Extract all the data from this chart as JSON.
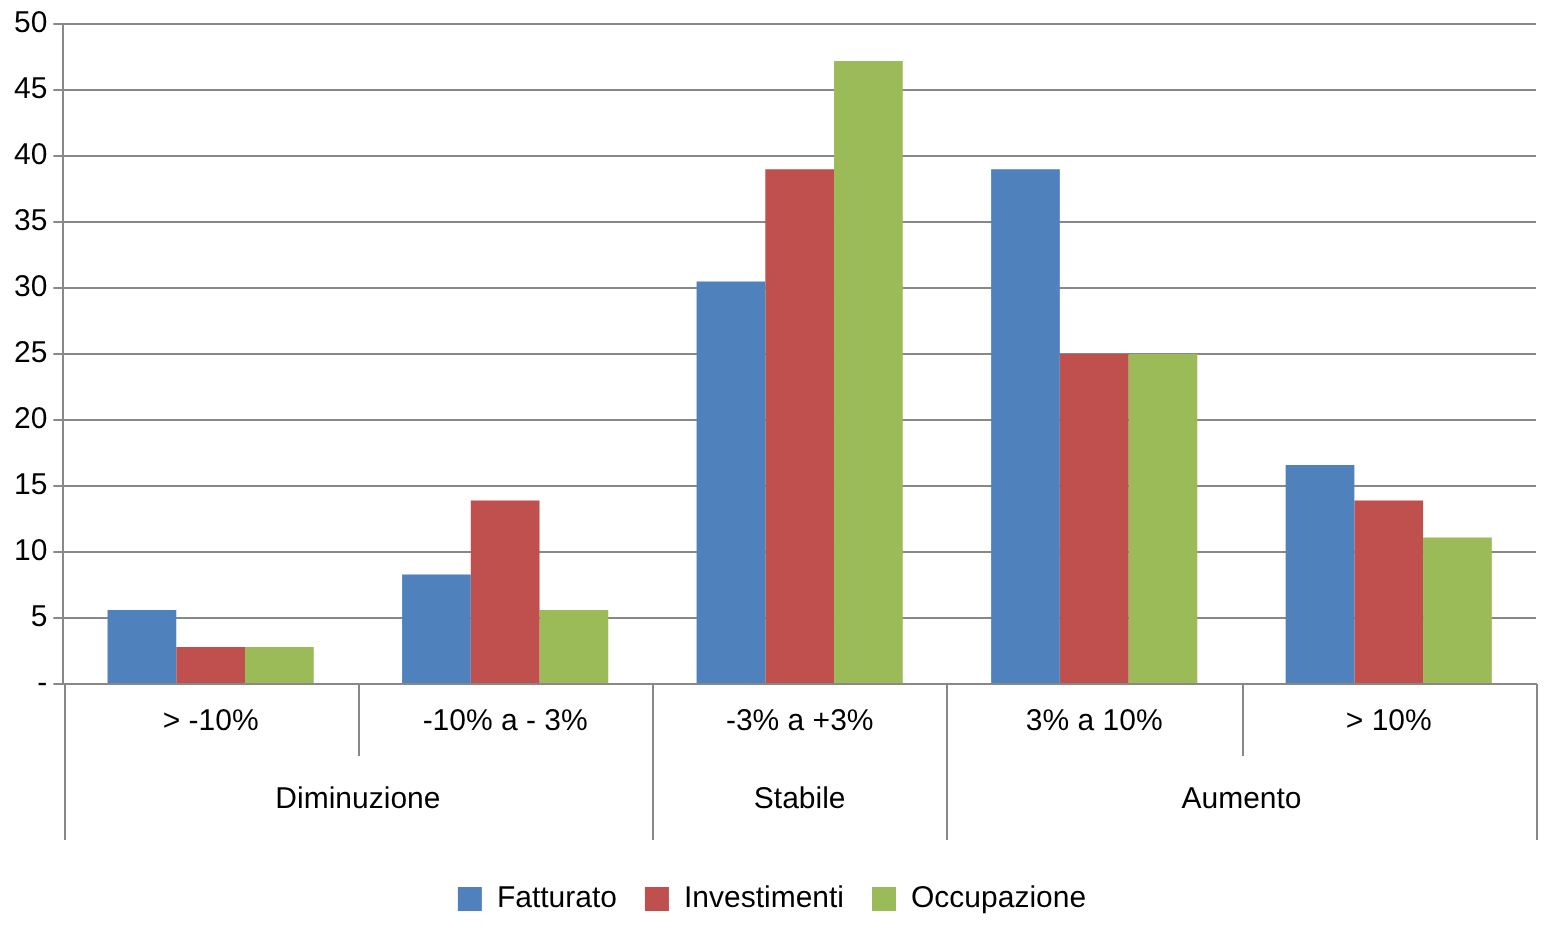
{
  "chart_data": {
    "type": "bar",
    "categories": [
      "> -10%",
      "-10% a - 3%",
      "-3% a +3%",
      "3% a 10%",
      "> 10%"
    ],
    "series": [
      {
        "name": "Fatturato",
        "color": "#4f81bd",
        "values": [
          5.6,
          8.3,
          30.5,
          39,
          16.6
        ]
      },
      {
        "name": "Investimenti",
        "color": "#c0504d",
        "values": [
          2.8,
          13.9,
          39,
          25,
          13.9
        ]
      },
      {
        "name": "Occupazione",
        "color": "#9bbb59",
        "values": [
          2.8,
          5.6,
          47.2,
          25,
          11.1
        ]
      }
    ],
    "ylim": [
      0,
      50
    ],
    "yticks": [
      {
        "value": 0,
        "label": "-"
      },
      5,
      10,
      15,
      20,
      25,
      30,
      35,
      40,
      45,
      50
    ],
    "annotations": [
      "Diminuzione",
      "Stabile",
      "Aumento"
    ],
    "grid": "y",
    "legend": "bottom"
  }
}
